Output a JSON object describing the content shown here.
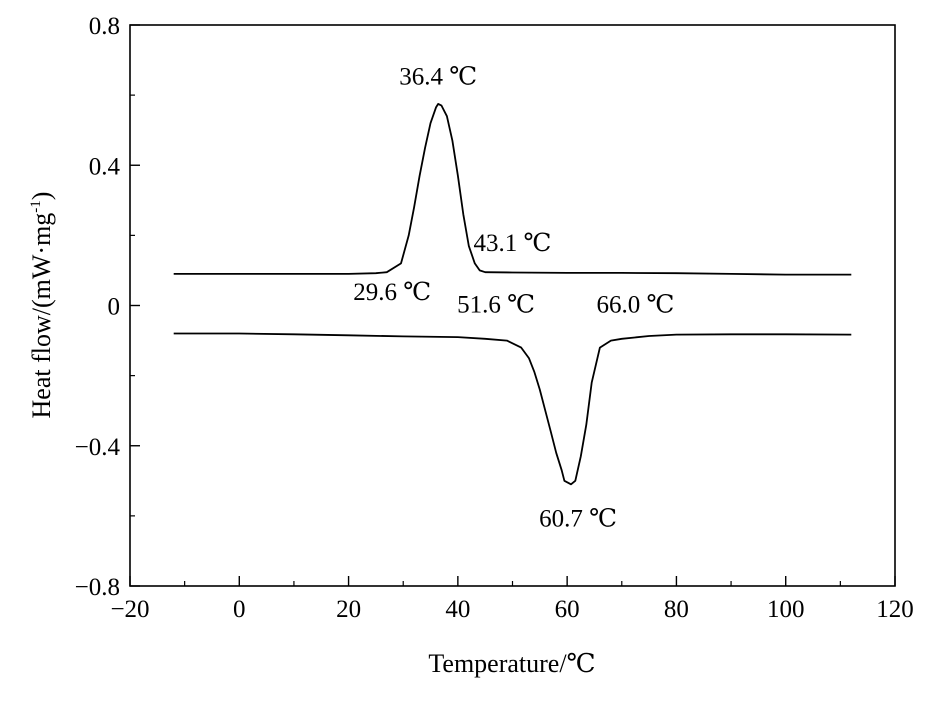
{
  "chart_data": {
    "type": "line",
    "title": "",
    "xlabel": "Temperature/℃",
    "ylabel_main": "Heat flow/(mW·mg",
    "ylabel_sup": "-1",
    "ylabel_close": ")",
    "xlim": [
      -20,
      120
    ],
    "ylim": [
      -0.8,
      0.8
    ],
    "x_major_ticks": [
      -20,
      0,
      20,
      40,
      60,
      80,
      100,
      120
    ],
    "x_tick_labels": [
      "−20",
      "0",
      "20",
      "40",
      "60",
      "80",
      "100",
      "120"
    ],
    "x_minor_ticks": [
      -10,
      10,
      30,
      50,
      70,
      90,
      110
    ],
    "y_major_ticks": [
      -0.8,
      -0.4,
      0,
      0.4,
      0.8
    ],
    "y_tick_labels": [
      "−0.8",
      "−0.4",
      "0",
      "0.4",
      "0.8"
    ],
    "y_minor_ticks": [
      -0.6,
      -0.2,
      0.2,
      0.6
    ],
    "grid": false,
    "series": [
      {
        "x": [
          -12,
          0,
          10,
          20,
          25,
          27,
          29.6,
          31,
          32,
          33,
          34,
          35,
          36,
          36.4,
          37,
          38,
          39,
          40,
          41,
          42,
          43.1,
          44,
          45,
          50,
          60,
          70,
          80,
          90,
          100,
          112
        ],
        "y": [
          0.09,
          0.09,
          0.09,
          0.09,
          0.092,
          0.095,
          0.12,
          0.2,
          0.28,
          0.37,
          0.45,
          0.52,
          0.565,
          0.575,
          0.57,
          0.54,
          0.47,
          0.37,
          0.26,
          0.17,
          0.12,
          0.1,
          0.095,
          0.094,
          0.093,
          0.093,
          0.092,
          0.09,
          0.088,
          0.088
        ]
      },
      {
        "x": [
          -12,
          0,
          10,
          20,
          30,
          40,
          45,
          49,
          51.6,
          53,
          54,
          55,
          56,
          57,
          58,
          59,
          59.5,
          60.7,
          61.5,
          62.5,
          63.5,
          64.5,
          66.0,
          68,
          70,
          75,
          80,
          90,
          100,
          112
        ],
        "y": [
          -0.08,
          -0.08,
          -0.082,
          -0.085,
          -0.088,
          -0.09,
          -0.095,
          -0.1,
          -0.12,
          -0.15,
          -0.19,
          -0.24,
          -0.3,
          -0.36,
          -0.42,
          -0.47,
          -0.5,
          -0.51,
          -0.5,
          -0.43,
          -0.34,
          -0.22,
          -0.12,
          -0.1,
          -0.095,
          -0.087,
          -0.083,
          -0.082,
          -0.082,
          -0.083
        ]
      }
    ],
    "annotations": [
      {
        "text": "36.4 ℃",
        "x": 36.4,
        "y": 0.63
      },
      {
        "text": "43.1 ℃",
        "x": 50,
        "y": 0.155
      },
      {
        "text": "29.6 ℃",
        "x": 28,
        "y": 0.015
      },
      {
        "text": "51.6 ℃",
        "x": 47,
        "y": -0.02
      },
      {
        "text": "66.0 ℃",
        "x": 72.5,
        "y": -0.02
      },
      {
        "text": "60.7 ℃",
        "x": 62,
        "y": -0.63
      }
    ]
  }
}
